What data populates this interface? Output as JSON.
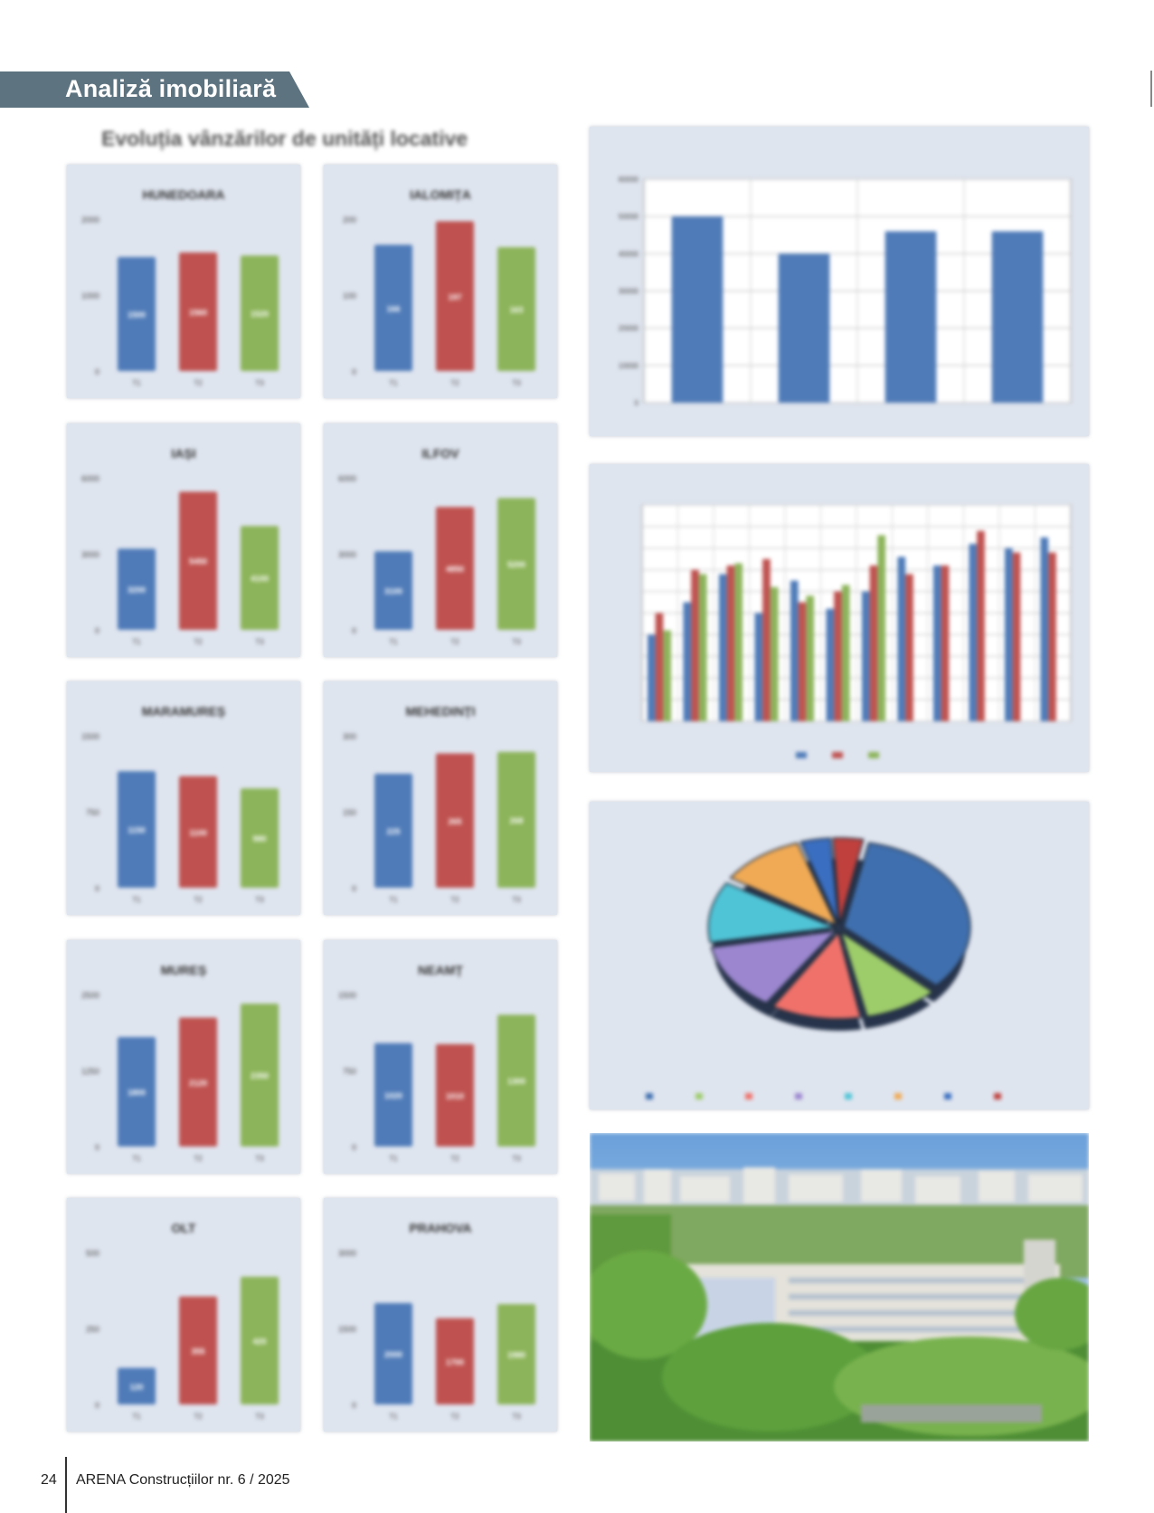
{
  "header": {
    "section_label": "Analiză imobiliară"
  },
  "main_title": "Evoluția vânzărilor de unități locative",
  "colors": {
    "blue": "#4f7bb8",
    "red": "#bf5250",
    "green": "#8cb45a",
    "panel_bg": "#dfe5ef",
    "tag_bg": "#5d7380"
  },
  "county_charts": {
    "type": "bar",
    "categories": [
      "T1",
      "T2",
      "T3"
    ],
    "charts": [
      {
        "title": "HUNEDOARA",
        "ymax": 2000,
        "ticks": [
          "0",
          "1000",
          "2000"
        ],
        "values": [
          1500,
          1560,
          1520
        ]
      },
      {
        "title": "IALOMIȚA",
        "ymax": 200,
        "ticks": [
          "0",
          "100",
          "200"
        ],
        "values": [
          166,
          197,
          163
        ]
      },
      {
        "title": "IAȘI",
        "ymax": 6000,
        "ticks": [
          "0",
          "3000",
          "6000"
        ],
        "values": [
          3200,
          5450,
          4100
        ]
      },
      {
        "title": "ILFOV",
        "ymax": 6000,
        "ticks": [
          "0",
          "3000",
          "6000"
        ],
        "values": [
          3100,
          4850,
          5200
        ]
      },
      {
        "title": "MARAMUREȘ",
        "ymax": 1500,
        "ticks": [
          "0",
          "750",
          "1500"
        ],
        "values": [
          1150,
          1100,
          980
        ]
      },
      {
        "title": "MEHEDINȚI",
        "ymax": 300,
        "ticks": [
          "0",
          "150",
          "300"
        ],
        "values": [
          225,
          265,
          268
        ]
      },
      {
        "title": "MUREȘ",
        "ymax": 2500,
        "ticks": [
          "0",
          "1250",
          "2500"
        ],
        "values": [
          1800,
          2120,
          2350
        ]
      },
      {
        "title": "NEAMȚ",
        "ymax": 1500,
        "ticks": [
          "0",
          "750",
          "1500"
        ],
        "values": [
          1020,
          1010,
          1300
        ]
      },
      {
        "title": "OLT",
        "ymax": 500,
        "ticks": [
          "0",
          "250",
          "500"
        ],
        "values": [
          120,
          355,
          420
        ]
      },
      {
        "title": "PRAHOVA",
        "ymax": 3000,
        "ticks": [
          "0",
          "1500",
          "3000"
        ],
        "values": [
          2000,
          1700,
          1980
        ]
      }
    ]
  },
  "chart_data": [
    {
      "type": "bar",
      "title": "",
      "categories": [
        "",
        "",
        "",
        ""
      ],
      "values": [
        50000,
        40000,
        46000,
        46000
      ],
      "ylim": [
        0,
        60000
      ],
      "yticks": [
        "0",
        "10000",
        "20000",
        "30000",
        "40000",
        "50000",
        "60000"
      ],
      "color": "#4f7bb8",
      "grid": true
    },
    {
      "type": "bar",
      "title": "",
      "categories": [
        "",
        "",
        "",
        "",
        "",
        "",
        "",
        "",
        "",
        "",
        "",
        ""
      ],
      "series": [
        {
          "values": [
            4000,
            5500,
            6800,
            5000,
            6500,
            5200,
            6000,
            7600,
            7200,
            8200,
            8000,
            8500
          ],
          "color": "#4f7bb8"
        },
        {
          "values": [
            5000,
            7000,
            7200,
            7500,
            5500,
            6000,
            7200,
            6800,
            7200,
            8800,
            7800,
            7800
          ],
          "color": "#bf5250"
        },
        {
          "values": [
            4200,
            6800,
            7300,
            6200,
            5800,
            6300,
            8600,
            null,
            null,
            null,
            null,
            null
          ],
          "color": "#8cb45a"
        }
      ],
      "ylim": [
        0,
        10000
      ],
      "legend": "bottom",
      "grid": true
    },
    {
      "type": "pie",
      "title": "",
      "values": [
        34,
        10,
        12,
        13,
        12,
        11,
        4,
        4
      ],
      "labels": [
        "",
        "",
        "",
        "",
        "",
        "",
        "",
        ""
      ],
      "colors": [
        "#3f6fae",
        "#9dcc6a",
        "#f0716a",
        "#9b86cf",
        "#4fc4d6",
        "#f0aa55",
        "#3a6ec0",
        "#c0403d"
      ],
      "legend": "bottom"
    }
  ],
  "photo": {
    "description": "city-apartment-blocks-photo"
  },
  "footer": {
    "page_number": "24",
    "publication": "ARENA Construcțiilor nr. 6 / 2025"
  }
}
